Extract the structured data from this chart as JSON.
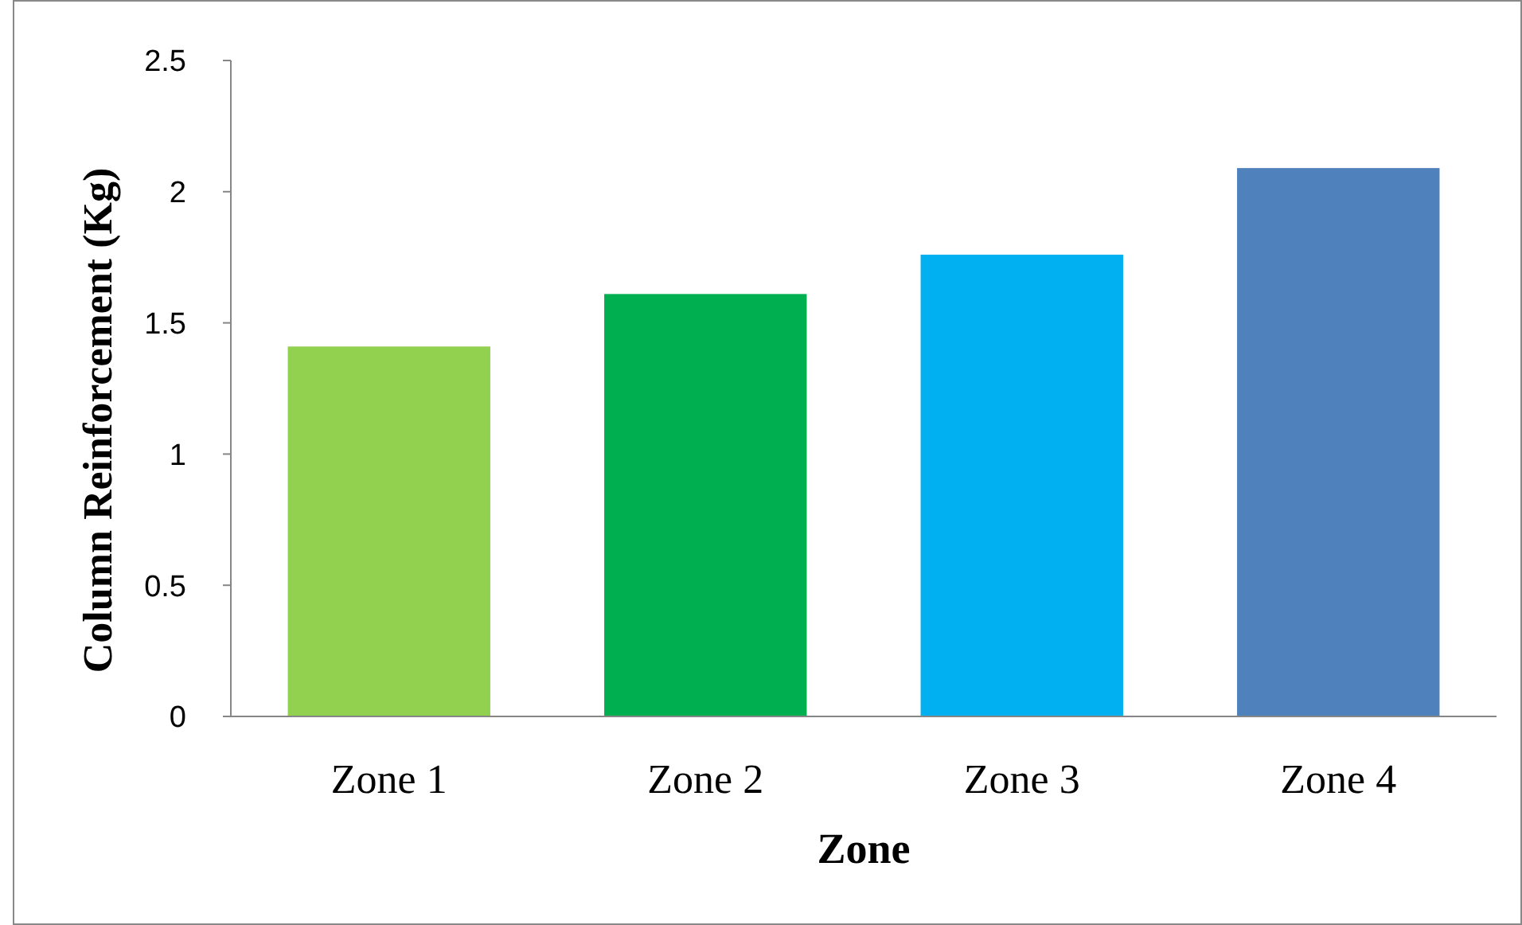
{
  "chart_data": {
    "type": "bar",
    "xlabel": "Zone",
    "ylabel": "Column Reinforcement (Kg)",
    "categories": [
      "Zone 1",
      "Zone 2",
      "Zone 3",
      "Zone 4"
    ],
    "values": [
      1.41,
      1.61,
      1.76,
      2.09
    ],
    "colors": [
      "#92d050",
      "#00b050",
      "#00b0f0",
      "#4f81bd"
    ],
    "ylim": [
      0,
      2.5
    ],
    "yticks": [
      0,
      0.5,
      1,
      1.5,
      2,
      2.5
    ],
    "grid": false
  }
}
